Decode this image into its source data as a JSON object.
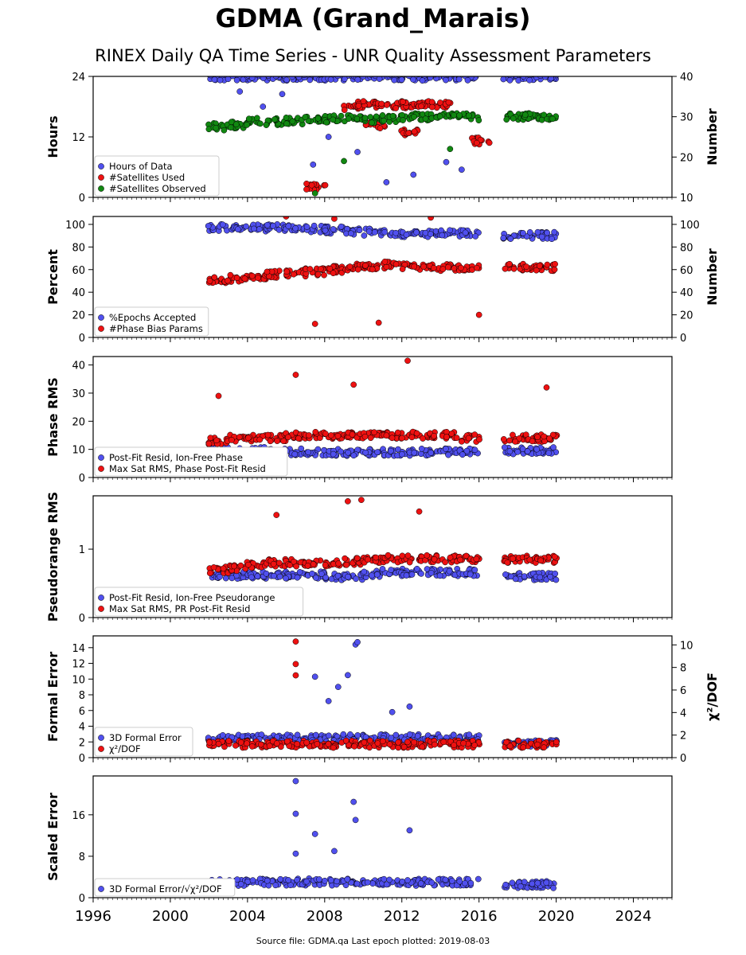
{
  "title": "GDMA (Grand_Marais)",
  "subtitle": "RINEX Daily QA Time Series - UNR Quality Assessment Parameters",
  "footer": "Source file: GDMA.qa Last epoch plotted: 2019-08-03",
  "colors": {
    "blue": "#5050ee",
    "red": "#ee1111",
    "green": "#118811",
    "darkred": "#8b0000"
  },
  "chart_data": [
    {
      "type": "scatter",
      "ylabel": "Hours",
      "ylabel_right": "Number",
      "xlim": [
        1996,
        2026
      ],
      "ylim": [
        0,
        24
      ],
      "ylim_right": [
        10,
        40
      ],
      "xticks": [
        1996,
        2000,
        2004,
        2008,
        2012,
        2016,
        2020,
        2024
      ],
      "yticks": [
        0,
        12,
        24
      ],
      "yticks_right": [
        10,
        20,
        30,
        40
      ],
      "legend": "lower-left",
      "series": [
        {
          "name": "Hours of Data",
          "color": "blue",
          "axis": "left",
          "x": [
            2002.5,
            2003.5,
            2004.5,
            2005.5,
            2006.5,
            2007.5,
            2008.5,
            2009.5,
            2010.5,
            2011.5,
            2012.5,
            2013.5,
            2014.5,
            2015.5,
            2017.8,
            2018.8,
            2019.5,
            2003.6,
            2004.8,
            2005.8,
            2007.4,
            2008.2,
            2009.7,
            2011.2,
            2012.6,
            2014.3,
            2015.1
          ],
          "y": [
            23.9,
            23.9,
            23.9,
            23.9,
            23.9,
            23.9,
            23.9,
            23.9,
            23.9,
            23.9,
            23.9,
            23.9,
            23.9,
            23.9,
            23.9,
            23.9,
            23.9,
            21.0,
            18.0,
            20.5,
            6.5,
            12.0,
            9.0,
            3.0,
            4.5,
            7.0,
            5.5
          ]
        },
        {
          "name": "#Satellites Used",
          "color": "red",
          "axis": "right",
          "x": [
            2009.5,
            2010.2,
            2011.0,
            2011.8,
            2012.5,
            2013.2,
            2014.0,
            2007.5,
            2016.0,
            2010.6,
            2012.4
          ],
          "y": [
            32.5,
            33.0,
            33.0,
            33.0,
            33.0,
            33.0,
            33.0,
            12.5,
            24.0,
            28.0,
            26.0
          ]
        },
        {
          "name": "#Satellites Observed",
          "color": "green",
          "axis": "right",
          "x": [
            2002.5,
            2003.5,
            2004.5,
            2005.5,
            2006.5,
            2007.5,
            2008.5,
            2009.5,
            2010.5,
            2011.5,
            2012.5,
            2013.5,
            2014.5,
            2015.5,
            2017.8,
            2018.8,
            2019.5,
            2007.5,
            2009.0,
            2014.5
          ],
          "y": [
            27.5,
            28.0,
            28.8,
            28.8,
            29.0,
            29.2,
            29.5,
            29.5,
            29.3,
            29.5,
            30.0,
            30.0,
            30.0,
            30.0,
            30.0,
            30.0,
            30.0,
            11.0,
            19.0,
            22.0
          ]
        }
      ]
    },
    {
      "type": "scatter",
      "ylabel": "Percent",
      "ylabel_right": "Number",
      "xlim": [
        1996,
        2026
      ],
      "ylim": [
        0,
        107
      ],
      "ylim_right": [
        0,
        107
      ],
      "yticks": [
        0,
        20,
        40,
        60,
        80,
        100
      ],
      "yticks_right": [
        0,
        20,
        40,
        60,
        80,
        100
      ],
      "legend": "lower-left",
      "series": [
        {
          "name": "%Epochs Accepted",
          "color": "blue",
          "axis": "left",
          "x": [
            2002.5,
            2003.5,
            2004.5,
            2005.5,
            2006.5,
            2007.5,
            2008.5,
            2009.5,
            2010.5,
            2011.5,
            2012.5,
            2013.5,
            2014.5,
            2015.5,
            2017.8,
            2018.8,
            2019.5
          ],
          "y": [
            97,
            97,
            97,
            97,
            97,
            96,
            95,
            94,
            93,
            92,
            92,
            92,
            92,
            92,
            90,
            90,
            90
          ]
        },
        {
          "name": "#Phase Bias Params",
          "color": "red",
          "axis": "right",
          "x": [
            2002.5,
            2003.5,
            2004.5,
            2005.5,
            2006.5,
            2007.5,
            2008.5,
            2009.5,
            2010.5,
            2011.5,
            2012.5,
            2013.5,
            2014.5,
            2015.5,
            2017.8,
            2018.8,
            2019.5,
            2007.5,
            2010.8,
            2013.5,
            2016.0,
            2006.0,
            2008.5
          ],
          "y": [
            50,
            52,
            54,
            56,
            57,
            58,
            60,
            62,
            63,
            64,
            63,
            62,
            62,
            62,
            62,
            62,
            62,
            12,
            13,
            106,
            20,
            107,
            105
          ]
        }
      ]
    },
    {
      "type": "scatter",
      "ylabel": "Phase RMS",
      "xlim": [
        1996,
        2026
      ],
      "ylim": [
        0,
        43
      ],
      "yticks": [
        0,
        10,
        20,
        30,
        40
      ],
      "legend": "lower-left",
      "series": [
        {
          "name": "Post-Fit Resid, Ion-Free Phase",
          "color": "blue",
          "x": [
            2002.5,
            2003.5,
            2004.5,
            2005.5,
            2006.5,
            2007.5,
            2008.5,
            2009.5,
            2010.5,
            2011.5,
            2012.5,
            2013.5,
            2014.5,
            2015.5,
            2017.8,
            2018.8,
            2019.5
          ],
          "y": [
            9.5,
            9.5,
            9.5,
            9.0,
            9.0,
            9.0,
            9.0,
            9.0,
            9.0,
            9.0,
            9.0,
            9.0,
            9.0,
            9.0,
            9.5,
            9.5,
            9.5
          ]
        },
        {
          "name": "Max Sat RMS, Phase Post-Fit Resid",
          "color": "red",
          "x": [
            2002.5,
            2003.5,
            2004.5,
            2005.5,
            2006.5,
            2007.5,
            2008.5,
            2009.5,
            2010.5,
            2011.5,
            2012.5,
            2013.5,
            2014.5,
            2015.5,
            2017.8,
            2018.8,
            2019.5,
            2006.5,
            2012.3,
            2002.5,
            2009.5,
            2019.5
          ],
          "y": [
            13,
            14,
            14,
            14,
            15,
            15,
            15,
            15,
            15,
            15,
            15,
            15,
            15,
            14,
            14,
            14,
            14,
            36.5,
            41.5,
            29,
            33,
            32
          ]
        }
      ]
    },
    {
      "type": "scatter",
      "ylabel": "Pseudorange RMS",
      "xlim": [
        1996,
        2026
      ],
      "ylim": [
        0,
        1.78
      ],
      "yticks": [
        0,
        1
      ],
      "legend": "lower-left",
      "series": [
        {
          "name": "Post-Fit Resid, Ion-Free Pseudorange",
          "color": "blue",
          "x": [
            2002.5,
            2003.5,
            2004.5,
            2005.5,
            2006.5,
            2007.5,
            2008.5,
            2009.5,
            2010.5,
            2011.5,
            2012.5,
            2013.5,
            2014.5,
            2015.5,
            2017.8,
            2018.8,
            2019.5
          ],
          "y": [
            0.62,
            0.62,
            0.62,
            0.62,
            0.62,
            0.62,
            0.6,
            0.6,
            0.64,
            0.66,
            0.66,
            0.66,
            0.66,
            0.66,
            0.6,
            0.6,
            0.6
          ]
        },
        {
          "name": "Max Sat RMS, PR Post-Fit Resid",
          "color": "red",
          "x": [
            2002.5,
            2003.5,
            2004.5,
            2005.5,
            2006.5,
            2007.5,
            2008.5,
            2009.5,
            2010.5,
            2011.5,
            2012.5,
            2013.5,
            2014.5,
            2015.5,
            2017.8,
            2018.8,
            2019.5,
            2009.2,
            2009.9,
            2012.9,
            2005.5
          ],
          "y": [
            0.7,
            0.72,
            0.76,
            0.8,
            0.8,
            0.8,
            0.8,
            0.82,
            0.85,
            0.86,
            0.86,
            0.86,
            0.86,
            0.85,
            0.85,
            0.85,
            0.85,
            1.7,
            1.72,
            1.55,
            1.5
          ]
        }
      ]
    },
    {
      "type": "scatter",
      "ylabel": "Formal Error",
      "ylabel_right": "χ²/DOF",
      "xlim": [
        1996,
        2026
      ],
      "ylim": [
        0,
        15.5
      ],
      "ylim_right": [
        0,
        10.8
      ],
      "yticks": [
        0,
        2,
        4,
        6,
        8,
        10,
        12,
        14
      ],
      "yticks_right": [
        0,
        2,
        4,
        6,
        8,
        10
      ],
      "legend": "lower-left",
      "series": [
        {
          "name": "3D Formal Error",
          "color": "blue",
          "axis": "left",
          "x": [
            2002.5,
            2003.5,
            2004.5,
            2005.5,
            2006.5,
            2007.5,
            2008.5,
            2009.5,
            2010.5,
            2011.5,
            2012.5,
            2013.5,
            2014.5,
            2015.5,
            2017.8,
            2018.8,
            2019.5,
            2008.2,
            2008.7,
            2009.2,
            2009.6,
            2009.7,
            2007.5,
            2011.5,
            2012.4
          ],
          "y": [
            2.5,
            2.5,
            2.5,
            2.5,
            2.5,
            2.5,
            2.5,
            2.5,
            2.5,
            2.5,
            2.5,
            2.5,
            2.5,
            2.5,
            1.8,
            1.8,
            1.8,
            7.2,
            9.0,
            10.5,
            14.4,
            14.7,
            10.3,
            5.8,
            6.5
          ]
        },
        {
          "name": "χ²/DOF",
          "color": "red",
          "axis": "right",
          "x": [
            2002.5,
            2003.5,
            2004.5,
            2005.5,
            2006.5,
            2007.5,
            2008.5,
            2009.5,
            2010.5,
            2011.5,
            2012.5,
            2013.5,
            2014.5,
            2015.5,
            2017.8,
            2018.8,
            2019.5,
            2006.5,
            2006.5,
            2006.5
          ],
          "y": [
            1.2,
            1.2,
            1.2,
            1.2,
            1.2,
            1.2,
            1.2,
            1.2,
            1.2,
            1.2,
            1.2,
            1.2,
            1.2,
            1.2,
            1.2,
            1.2,
            1.2,
            10.3,
            8.3,
            7.3
          ]
        }
      ]
    },
    {
      "type": "scatter",
      "ylabel": "Scaled Error",
      "xlim": [
        1996,
        2026
      ],
      "ylim": [
        0,
        23.5
      ],
      "yticks": [
        0,
        8,
        16
      ],
      "legend": "lower-left",
      "series": [
        {
          "name": "3D Formal Error/√χ²/DOF",
          "color": "blue",
          "x": [
            2002.5,
            2003.5,
            2004.5,
            2005.5,
            2006.5,
            2007.5,
            2008.5,
            2009.5,
            2010.5,
            2011.5,
            2012.5,
            2013.5,
            2014.5,
            2015.5,
            2017.8,
            2018.8,
            2019.5,
            2006.5,
            2006.5,
            2006.5,
            2007.5,
            2009.5,
            2009.6,
            2012.4,
            2008.5
          ],
          "y": [
            3.0,
            3.0,
            3.0,
            3.0,
            3.0,
            3.0,
            3.0,
            3.0,
            3.0,
            3.0,
            3.0,
            3.0,
            3.0,
            3.0,
            2.5,
            2.5,
            2.5,
            22.5,
            16.2,
            8.5,
            12.3,
            18.5,
            15.0,
            13.0,
            9.0
          ]
        }
      ]
    }
  ]
}
